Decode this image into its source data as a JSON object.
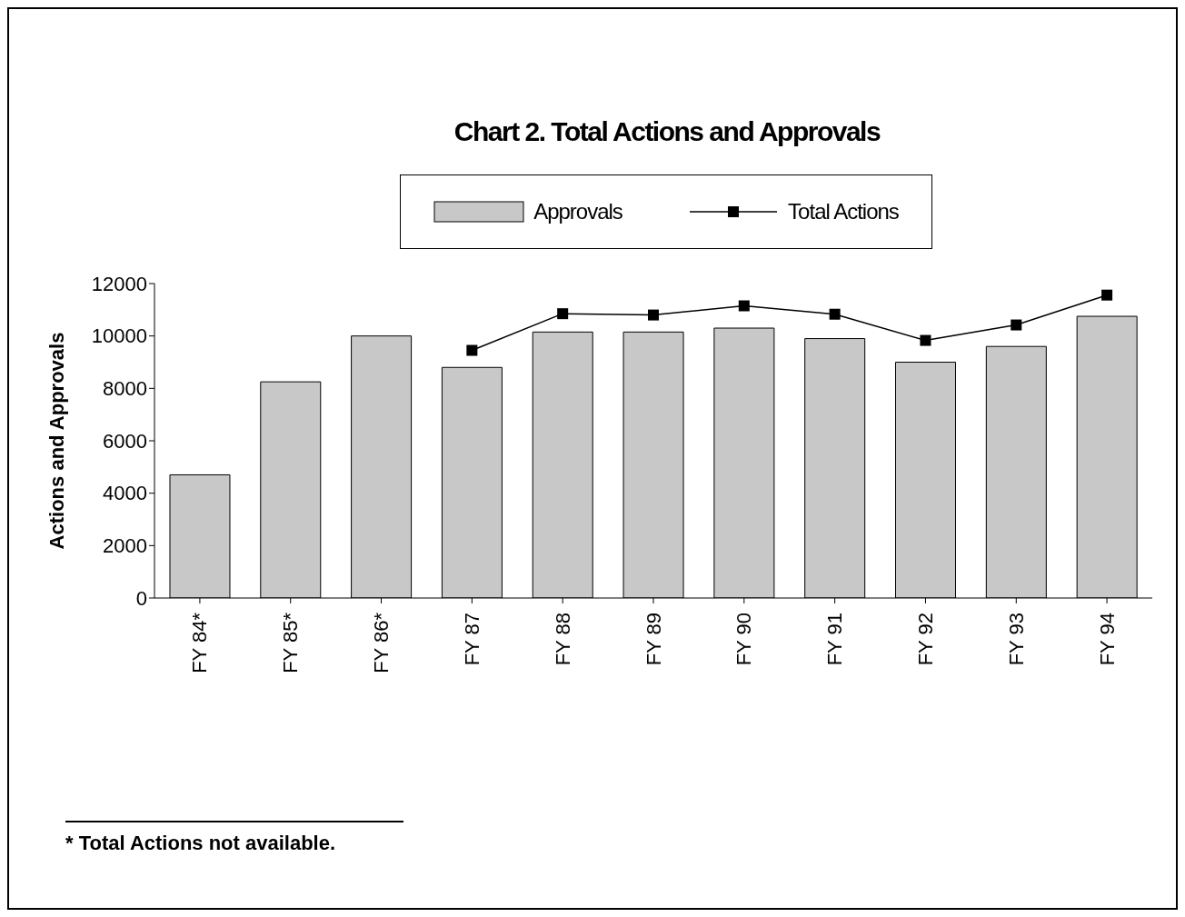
{
  "chart_data": {
    "type": "bar",
    "title": "Chart 2. Total Actions and Approvals",
    "ylabel": "Actions and Approvals",
    "categories": [
      "FY 84*",
      "FY 85*",
      "FY 86*",
      "FY 87",
      "FY 88",
      "FY 89",
      "FY 90",
      "FY 91",
      "FY 92",
      "FY 93",
      "FY 94"
    ],
    "series": [
      {
        "name": "Approvals",
        "color": "#c8c8c8",
        "values": [
          4700,
          8250,
          10000,
          8800,
          10150,
          10150,
          10300,
          9900,
          9000,
          9600,
          10750
        ]
      },
      {
        "name": "Total Actions",
        "type": "line",
        "color": "#000000",
        "marker": "square",
        "values": [
          null,
          null,
          null,
          9450,
          10850,
          10800,
          11150,
          10830,
          9830,
          10420,
          11560
        ]
      }
    ],
    "ylim": [
      0,
      12000
    ],
    "yticks": [
      0,
      2000,
      4000,
      6000,
      8000,
      10000,
      12000
    ],
    "grid": false,
    "legend": "top",
    "annotations": [
      "* Total Actions not available."
    ]
  }
}
